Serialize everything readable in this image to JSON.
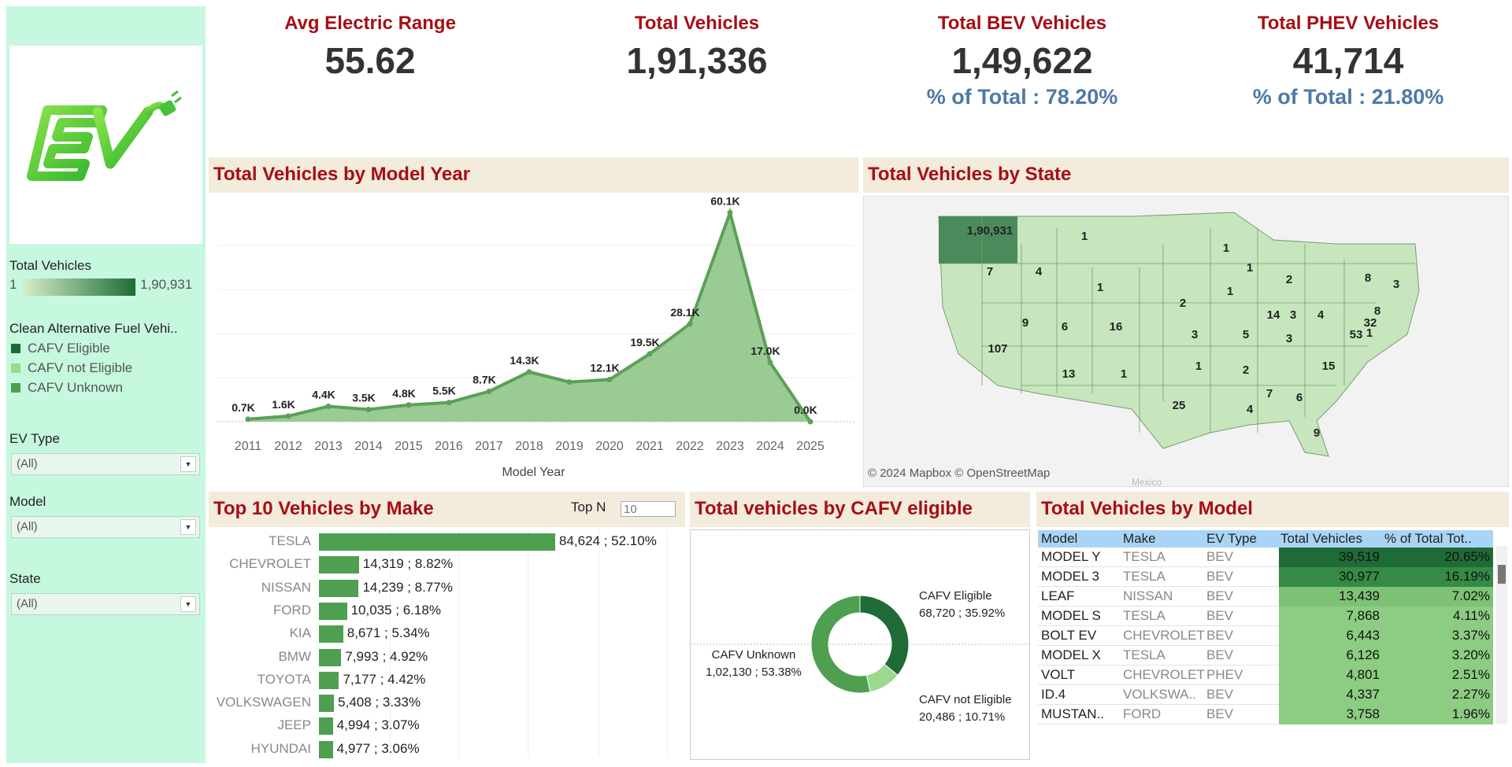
{
  "kpis": [
    {
      "title": "Avg Electric Range",
      "value": "55.62",
      "sub": ""
    },
    {
      "title": "Total Vehicles",
      "value": "1,91,336",
      "sub": ""
    },
    {
      "title": "Total BEV Vehicles",
      "value": "1,49,622",
      "sub": "% of Total : 78.20%"
    },
    {
      "title": "Total PHEV Vehicles",
      "value": "41,714",
      "sub": "% of Total : 21.80%"
    }
  ],
  "sidebar": {
    "logo_text": "EV",
    "total_vehicles_label": "Total Vehicles",
    "range_min": "1",
    "range_max": "1,90,931",
    "cafv_legend_title": "Clean Alternative Fuel Vehi..",
    "cafv_legend": [
      {
        "label": "CAFV Eligible",
        "color": "#1f6b37"
      },
      {
        "label": "CAFV not Eligible",
        "color": "#9bd98c"
      },
      {
        "label": "CAFV Unknown",
        "color": "#4e9f50"
      }
    ],
    "filters": [
      {
        "label": "EV Type",
        "value": "(All)"
      },
      {
        "label": "Model",
        "value": "(All)"
      },
      {
        "label": "State",
        "value": "(All)"
      }
    ]
  },
  "year_chart": {
    "header": "Total Vehicles by Model Year",
    "xlabel": "Model Year"
  },
  "state_map": {
    "header": "Total Vehicles by State",
    "attribution": "© 2024 Mapbox © OpenStreetMap",
    "mexico_label": "Mexico",
    "values": [
      {
        "state": "WA",
        "label": "1,90,931"
      },
      {
        "state": "OR",
        "label": "7"
      },
      {
        "state": "CA",
        "label": "107"
      },
      {
        "state": "NV",
        "label": "9"
      },
      {
        "state": "ID",
        "label": "4"
      },
      {
        "state": "MT",
        "label": "1"
      },
      {
        "state": "WY",
        "label": "1"
      },
      {
        "state": "UT",
        "label": "6"
      },
      {
        "state": "CO",
        "label": "16"
      },
      {
        "state": "AZ",
        "label": "13"
      },
      {
        "state": "NM",
        "label": "1"
      },
      {
        "state": "NE",
        "label": "2"
      },
      {
        "state": "KS",
        "label": "3"
      },
      {
        "state": "OK",
        "label": "1"
      },
      {
        "state": "TX",
        "label": "25"
      },
      {
        "state": "MN",
        "label": "1"
      },
      {
        "state": "IA",
        "label": "1"
      },
      {
        "state": "MO",
        "label": "5"
      },
      {
        "state": "AR",
        "label": "2"
      },
      {
        "state": "LA",
        "label": "4"
      },
      {
        "state": "WI",
        "label": "1"
      },
      {
        "state": "IL",
        "label": "14"
      },
      {
        "state": "MI",
        "label": "2"
      },
      {
        "state": "IN",
        "label": "3"
      },
      {
        "state": "OH",
        "label": "4"
      },
      {
        "state": "KY",
        "label": "3"
      },
      {
        "state": "MS",
        "label": "7"
      },
      {
        "state": "AL",
        "label": "6"
      },
      {
        "state": "FL",
        "label": "9"
      },
      {
        "state": "NC",
        "label": "15"
      },
      {
        "state": "VA",
        "label": "53"
      },
      {
        "state": "MD",
        "label": "32"
      },
      {
        "state": "DE",
        "label": "1"
      },
      {
        "state": "NJ",
        "label": "8"
      },
      {
        "state": "NY",
        "label": "8"
      },
      {
        "state": "MA",
        "label": "3"
      }
    ]
  },
  "make_chart": {
    "header": "Top  10 Vehicles by Make",
    "topn_label": "Top N",
    "topn_value": "10"
  },
  "cafv_chart": {
    "header": "Total vehicles by CAFV eligible"
  },
  "model_table": {
    "header": "Total Vehicles by Model",
    "columns": [
      "Model",
      "Make",
      "EV Type",
      "Total Vehicles",
      "% of Total Tot.."
    ],
    "rows": [
      {
        "model": "MODEL Y",
        "make": "TESLA",
        "ev_type": "BEV",
        "total": "39,519",
        "pct": "20.65%",
        "shade": "#1f6b37"
      },
      {
        "model": "MODEL 3",
        "make": "TESLA",
        "ev_type": "BEV",
        "total": "30,977",
        "pct": "16.19%",
        "shade": "#358a45"
      },
      {
        "model": "LEAF",
        "make": "NISSAN",
        "ev_type": "BEV",
        "total": "13,439",
        "pct": "7.02%",
        "shade": "#7dc275"
      },
      {
        "model": "MODEL S",
        "make": "TESLA",
        "ev_type": "BEV",
        "total": "7,868",
        "pct": "4.11%",
        "shade": "#8dcc83"
      },
      {
        "model": "BOLT EV",
        "make": "CHEVROLET",
        "ev_type": "BEV",
        "total": "6,443",
        "pct": "3.37%",
        "shade": "#8dcc83"
      },
      {
        "model": "MODEL X",
        "make": "TESLA",
        "ev_type": "BEV",
        "total": "6,126",
        "pct": "3.20%",
        "shade": "#8dcc83"
      },
      {
        "model": "VOLT",
        "make": "CHEVROLET",
        "ev_type": "PHEV",
        "total": "4,801",
        "pct": "2.51%",
        "shade": "#8dcc83"
      },
      {
        "model": "ID.4",
        "make": "VOLKSWA..",
        "ev_type": "BEV",
        "total": "4,337",
        "pct": "2.27%",
        "shade": "#8dcc83"
      },
      {
        "model": "MUSTAN..",
        "make": "FORD",
        "ev_type": "BEV",
        "total": "3,758",
        "pct": "1.96%",
        "shade": "#8dcc83"
      }
    ]
  },
  "chart_data": [
    {
      "type": "area",
      "title": "Total Vehicles by Model Year",
      "xlabel": "Model Year",
      "ylabel": "",
      "x": [
        "2011",
        "2012",
        "2013",
        "2014",
        "2015",
        "2016",
        "2017",
        "2018",
        "2019",
        "2020",
        "2021",
        "2022",
        "2023",
        "2024",
        "2025"
      ],
      "values": [
        700,
        1600,
        4400,
        3500,
        4800,
        5500,
        8700,
        14300,
        11400,
        12100,
        19500,
        28100,
        60100,
        17000,
        0
      ],
      "labels": [
        "0.7K",
        "1.6K",
        "4.4K",
        "3.5K",
        "4.8K",
        "5.5K",
        "8.7K",
        "14.3K",
        "",
        "12.1K",
        "19.5K",
        "28.1K",
        "60.1K",
        "17.0K",
        "0.0K"
      ],
      "ylim": [
        0,
        62000
      ],
      "grid": true,
      "color": "#5ca057"
    },
    {
      "type": "bar",
      "title": "Top  10 Vehicles by Make",
      "categories": [
        "TESLA",
        "CHEVROLET",
        "NISSAN",
        "FORD",
        "KIA",
        "BMW",
        "TOYOTA",
        "VOLKSWAGEN",
        "JEEP",
        "HYUNDAI"
      ],
      "values": [
        84624,
        14319,
        14239,
        10035,
        8671,
        7993,
        7177,
        5408,
        4994,
        4977
      ],
      "labels": [
        "84,624 ; 52.10%",
        "14,319 ; 8.82%",
        "14,239 ; 8.77%",
        "10,035 ; 6.18%",
        "8,671 ; 5.34%",
        "7,993 ; 4.92%",
        "7,177 ; 4.42%",
        "5,408 ; 3.33%",
        "4,994 ; 3.07%",
        "4,977 ; 3.06%"
      ],
      "orientation": "horizontal",
      "color": "#4e9f50"
    },
    {
      "type": "pie",
      "title": "Total vehicles by CAFV eligible",
      "slices": [
        {
          "name": "CAFV Eligible",
          "value": 68720,
          "pct": 35.92,
          "label": "68,720 ; 35.92%",
          "color": "#1f6b37"
        },
        {
          "name": "CAFV not Eligible",
          "value": 20486,
          "pct": 10.71,
          "label": "20,486 ; 10.71%",
          "color": "#9bd98c"
        },
        {
          "name": "CAFV Unknown",
          "value": 102130,
          "pct": 53.38,
          "label": "1,02,130 ; 53.38%",
          "color": "#4e9f50"
        }
      ],
      "donut": true
    }
  ]
}
